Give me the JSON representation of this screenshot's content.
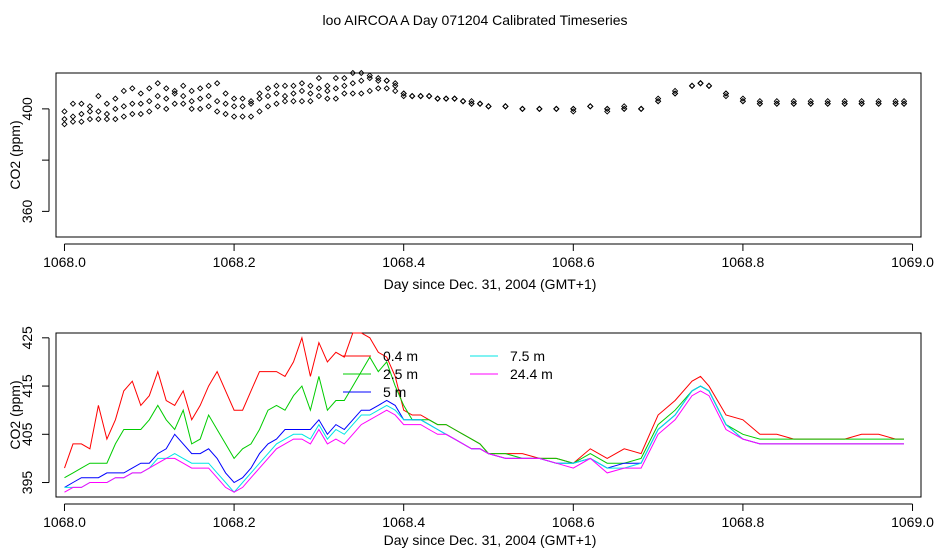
{
  "page_title": "loo AIRCOA A  Day 071204  Calibrated Timeseries",
  "colors": {
    "0.4 m": "#ff0000",
    "2.5 m": "#00cc00",
    "5 m": "#0000ff",
    "7.5 m": "#00e5e5",
    "24.4 m": "#ff00ff"
  },
  "chart_data": [
    {
      "type": "scatter",
      "title": "",
      "xlabel": "Day since Dec. 31, 2004 (GMT+1)",
      "ylabel": "CO2 (ppm)",
      "xlim": [
        1067.99,
        1069.01
      ],
      "ylim": [
        350,
        414
      ],
      "x_ticks": [
        1068.0,
        1068.2,
        1068.4,
        1068.6,
        1068.8,
        1069.0
      ],
      "x_tick_labels": [
        "1068.0",
        "1068.2",
        "1068.4",
        "1068.6",
        "1068.8",
        "1069.0"
      ],
      "y_ticks": [
        360,
        380,
        400
      ],
      "y_tick_labels": [
        "360",
        "",
        "400"
      ],
      "marker": "open-diamond",
      "grid": false,
      "series": [
        {
          "x": [
            1068.0,
            1068.01,
            1068.02,
            1068.03,
            1068.04,
            1068.05,
            1068.06,
            1068.07,
            1068.08,
            1068.09,
            1068.1,
            1068.11,
            1068.12,
            1068.13,
            1068.14,
            1068.15,
            1068.16,
            1068.17,
            1068.18,
            1068.19,
            1068.2,
            1068.21,
            1068.22,
            1068.23,
            1068.24,
            1068.25,
            1068.26,
            1068.27,
            1068.28,
            1068.29,
            1068.3,
            1068.31,
            1068.32,
            1068.33,
            1068.34,
            1068.35,
            1068.36,
            1068.37,
            1068.38,
            1068.39,
            1068.4,
            1068.41,
            1068.42,
            1068.43,
            1068.44,
            1068.45,
            1068.46,
            1068.47,
            1068.48,
            1068.49,
            1068.5,
            1068.52,
            1068.54,
            1068.56,
            1068.58,
            1068.6,
            1068.62,
            1068.64,
            1068.66,
            1068.68,
            1068.7,
            1068.72,
            1068.74,
            1068.75,
            1068.76,
            1068.78,
            1068.8,
            1068.82,
            1068.84,
            1068.86,
            1068.88,
            1068.9,
            1068.92,
            1068.94,
            1068.96,
            1068.98,
            1068.99
          ],
          "values": [
            399,
            402,
            402,
            401,
            405,
            402,
            404,
            407,
            408,
            406,
            408,
            410,
            408,
            407,
            409,
            407,
            408,
            409,
            410,
            406,
            404,
            404,
            403,
            406,
            408,
            409,
            409,
            409,
            410,
            409,
            412,
            409,
            412,
            412,
            414,
            414,
            413,
            412,
            411,
            409,
            406,
            405,
            405,
            405,
            404,
            404,
            404,
            403,
            403,
            402,
            401,
            401,
            400,
            400,
            400,
            400,
            401,
            400,
            401,
            400,
            404,
            407,
            409,
            410,
            409,
            406,
            404,
            403,
            403,
            403,
            403,
            403,
            403,
            403,
            403,
            403,
            403
          ]
        },
        {
          "x": [
            1068.0,
            1068.01,
            1068.02,
            1068.03,
            1068.04,
            1068.05,
            1068.06,
            1068.07,
            1068.08,
            1068.09,
            1068.1,
            1068.11,
            1068.12,
            1068.13,
            1068.14,
            1068.15,
            1068.16,
            1068.17,
            1068.18,
            1068.19,
            1068.2,
            1068.21,
            1068.22,
            1068.23,
            1068.24,
            1068.25,
            1068.26,
            1068.27,
            1068.28,
            1068.29,
            1068.3,
            1068.31,
            1068.32,
            1068.33,
            1068.34,
            1068.35,
            1068.36,
            1068.37,
            1068.38,
            1068.39,
            1068.4,
            1068.41,
            1068.42,
            1068.43,
            1068.44,
            1068.45,
            1068.46,
            1068.47,
            1068.48,
            1068.49,
            1068.5,
            1068.52,
            1068.54,
            1068.56,
            1068.58,
            1068.6,
            1068.62,
            1068.64,
            1068.66,
            1068.68,
            1068.7,
            1068.72,
            1068.74,
            1068.75,
            1068.76,
            1068.78,
            1068.8,
            1068.82,
            1068.84,
            1068.86,
            1068.88,
            1068.9,
            1068.92,
            1068.94,
            1068.96,
            1068.98,
            1068.99
          ],
          "values": [
            396,
            397,
            398,
            399,
            399,
            398,
            400,
            401,
            402,
            402,
            403,
            405,
            404,
            406,
            405,
            403,
            404,
            405,
            403,
            402,
            401,
            401,
            402,
            404,
            405,
            406,
            405,
            406,
            407,
            406,
            408,
            407,
            408,
            409,
            410,
            411,
            412,
            411,
            411,
            410,
            406,
            405,
            405,
            405,
            404,
            404,
            404,
            403,
            402,
            402,
            401,
            401,
            400,
            400,
            400,
            400,
            401,
            400,
            400,
            400,
            403,
            406,
            409,
            410,
            409,
            406,
            403,
            402,
            402,
            402,
            402,
            402,
            402,
            402,
            402,
            402,
            402
          ]
        },
        {
          "x": [
            1068.0,
            1068.01,
            1068.02,
            1068.03,
            1068.04,
            1068.05,
            1068.06,
            1068.07,
            1068.08,
            1068.09,
            1068.1,
            1068.11,
            1068.12,
            1068.13,
            1068.14,
            1068.15,
            1068.16,
            1068.17,
            1068.18,
            1068.19,
            1068.2,
            1068.21,
            1068.22,
            1068.23,
            1068.24,
            1068.25,
            1068.26,
            1068.27,
            1068.28,
            1068.29,
            1068.3,
            1068.31,
            1068.32,
            1068.33,
            1068.34,
            1068.35,
            1068.36,
            1068.37,
            1068.38,
            1068.39,
            1068.4,
            1068.41,
            1068.42,
            1068.43,
            1068.44,
            1068.45,
            1068.46,
            1068.47,
            1068.48,
            1068.49,
            1068.5,
            1068.52,
            1068.54,
            1068.56,
            1068.58,
            1068.6,
            1068.62,
            1068.64,
            1068.66,
            1068.68,
            1068.7,
            1068.72,
            1068.74,
            1068.75,
            1068.76,
            1068.78,
            1068.8,
            1068.82,
            1068.84,
            1068.86,
            1068.88,
            1068.9,
            1068.92,
            1068.94,
            1068.96,
            1068.98,
            1068.99
          ],
          "values": [
            394,
            395,
            395,
            396,
            396,
            396,
            396,
            397,
            398,
            398,
            399,
            401,
            400,
            402,
            402,
            400,
            400,
            401,
            399,
            398,
            397,
            397,
            397,
            399,
            401,
            402,
            403,
            403,
            403,
            403,
            405,
            404,
            404,
            406,
            406,
            406,
            407,
            408,
            408,
            407,
            405,
            405,
            405,
            405,
            404,
            404,
            404,
            403,
            402,
            402,
            401,
            401,
            400,
            400,
            400,
            399,
            401,
            399,
            400,
            400,
            403,
            406,
            409,
            410,
            409,
            405,
            403,
            402,
            402,
            402,
            402,
            402,
            402,
            402,
            402,
            402,
            402
          ]
        }
      ]
    },
    {
      "type": "line",
      "title": "",
      "xlabel": "Day since Dec. 31, 2004 (GMT+1)",
      "ylabel": "CO2 (ppm)",
      "xlim": [
        1067.99,
        1069.01
      ],
      "ylim": [
        392,
        426
      ],
      "x_ticks": [
        1068.0,
        1068.2,
        1068.4,
        1068.6,
        1068.8,
        1069.0
      ],
      "x_tick_labels": [
        "1068.0",
        "1068.2",
        "1068.4",
        "1068.6",
        "1068.8",
        "1069.0"
      ],
      "y_ticks": [
        395,
        405,
        415,
        425
      ],
      "y_tick_labels": [
        "395",
        "405",
        "415",
        "425"
      ],
      "legend_position": "top-center",
      "grid": false,
      "x": [
        1068.0,
        1068.01,
        1068.02,
        1068.03,
        1068.04,
        1068.05,
        1068.06,
        1068.07,
        1068.08,
        1068.09,
        1068.1,
        1068.11,
        1068.12,
        1068.13,
        1068.14,
        1068.15,
        1068.16,
        1068.17,
        1068.18,
        1068.19,
        1068.2,
        1068.21,
        1068.22,
        1068.23,
        1068.24,
        1068.25,
        1068.26,
        1068.27,
        1068.28,
        1068.29,
        1068.3,
        1068.31,
        1068.32,
        1068.33,
        1068.34,
        1068.35,
        1068.36,
        1068.37,
        1068.38,
        1068.39,
        1068.4,
        1068.41,
        1068.42,
        1068.43,
        1068.44,
        1068.45,
        1068.46,
        1068.47,
        1068.48,
        1068.49,
        1068.5,
        1068.52,
        1068.54,
        1068.56,
        1068.58,
        1068.6,
        1068.62,
        1068.64,
        1068.66,
        1068.68,
        1068.7,
        1068.72,
        1068.74,
        1068.75,
        1068.76,
        1068.78,
        1068.8,
        1068.82,
        1068.84,
        1068.86,
        1068.88,
        1068.9,
        1068.92,
        1068.94,
        1068.96,
        1068.98,
        1068.99
      ],
      "series": [
        {
          "name": "0.4 m",
          "values": [
            398,
            403,
            403,
            402,
            411,
            404,
            408,
            414,
            416,
            411,
            413,
            418,
            412,
            411,
            414,
            408,
            411,
            415,
            418,
            414,
            410,
            410,
            414,
            418,
            418,
            418,
            417,
            420,
            425,
            417,
            424,
            420,
            422,
            421,
            426,
            426,
            425,
            422,
            421,
            417,
            410,
            409,
            409,
            408,
            407,
            407,
            406,
            405,
            404,
            403,
            401,
            401,
            401,
            400,
            400,
            399,
            402,
            400,
            402,
            401,
            409,
            412,
            416,
            417,
            415,
            409,
            408,
            405,
            405,
            404,
            404,
            404,
            404,
            405,
            405,
            404,
            404
          ]
        },
        {
          "name": "2.5 m",
          "values": [
            396,
            397,
            398,
            399,
            399,
            399,
            403,
            406,
            406,
            406,
            408,
            411,
            408,
            406,
            410,
            403,
            404,
            409,
            406,
            403,
            400,
            402,
            403,
            406,
            410,
            411,
            410,
            413,
            415,
            410,
            417,
            410,
            412,
            412,
            415,
            418,
            421,
            418,
            420,
            415,
            411,
            408,
            408,
            408,
            407,
            407,
            406,
            405,
            404,
            403,
            401,
            401,
            400,
            400,
            400,
            399,
            401,
            399,
            399,
            400,
            407,
            410,
            414,
            415,
            414,
            407,
            405,
            404,
            404,
            404,
            404,
            404,
            404,
            404,
            404,
            404,
            404
          ]
        },
        {
          "name": "5 m",
          "values": [
            394,
            395,
            396,
            396,
            396,
            397,
            397,
            397,
            398,
            399,
            399,
            401,
            402,
            405,
            403,
            401,
            401,
            402,
            400,
            397,
            395,
            396,
            398,
            401,
            403,
            404,
            406,
            406,
            406,
            406,
            408,
            405,
            407,
            406,
            408,
            410,
            410,
            411,
            412,
            411,
            408,
            408,
            408,
            407,
            406,
            405,
            404,
            403,
            402,
            402,
            401,
            400,
            400,
            400,
            399,
            399,
            400,
            398,
            399,
            399,
            406,
            409,
            414,
            415,
            414,
            407,
            404,
            403,
            403,
            403,
            403,
            403,
            403,
            403,
            403,
            403,
            403
          ]
        },
        {
          "name": "7.5 m",
          "values": [
            394,
            394,
            394,
            395,
            395,
            395,
            396,
            396,
            397,
            397,
            398,
            400,
            400,
            401,
            400,
            399,
            399,
            399,
            397,
            395,
            393,
            395,
            397,
            399,
            401,
            403,
            404,
            405,
            405,
            404,
            407,
            404,
            406,
            405,
            407,
            409,
            409,
            410,
            411,
            410,
            408,
            408,
            408,
            407,
            406,
            405,
            404,
            403,
            402,
            402,
            401,
            400,
            400,
            400,
            399,
            399,
            400,
            398,
            398,
            399,
            406,
            409,
            414,
            415,
            414,
            407,
            404,
            403,
            403,
            403,
            403,
            403,
            403,
            403,
            403,
            403,
            403
          ]
        },
        {
          "name": "24.4 m",
          "values": [
            393,
            394,
            394,
            395,
            395,
            395,
            396,
            396,
            397,
            397,
            398,
            399,
            400,
            400,
            399,
            398,
            398,
            398,
            396,
            394,
            393,
            394,
            396,
            398,
            400,
            402,
            403,
            404,
            404,
            403,
            406,
            403,
            404,
            403,
            405,
            407,
            408,
            409,
            410,
            409,
            407,
            407,
            407,
            406,
            405,
            405,
            404,
            403,
            402,
            402,
            401,
            400,
            400,
            400,
            399,
            398,
            400,
            397,
            398,
            398,
            405,
            408,
            413,
            414,
            413,
            406,
            404,
            403,
            403,
            403,
            403,
            403,
            403,
            403,
            403,
            403,
            403
          ]
        }
      ]
    }
  ]
}
